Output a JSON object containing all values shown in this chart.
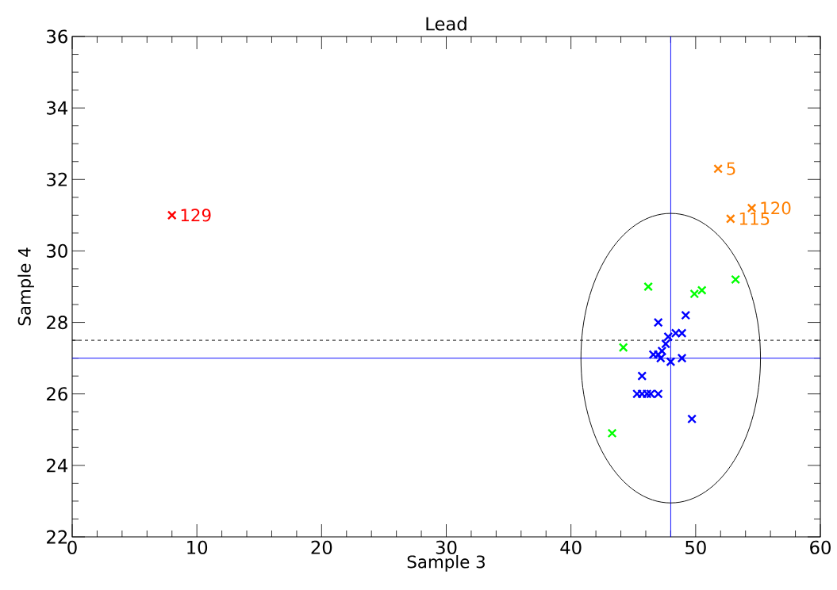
{
  "chart_data": {
    "type": "scatter",
    "title": "Lead",
    "xlabel": "Sample 3",
    "ylabel": "Sample 4",
    "xlim": [
      0,
      60
    ],
    "ylim": [
      22,
      36
    ],
    "xticks": [
      0,
      10,
      20,
      30,
      40,
      50,
      60
    ],
    "yticks": [
      22,
      24,
      26,
      28,
      30,
      32,
      34,
      36
    ],
    "marker": "cross",
    "grid": false,
    "series": [
      {
        "color": "#ff0000",
        "x": [
          8.0
        ],
        "values": [
          31.0
        ]
      },
      {
        "color": "#ff7f00",
        "x": [
          51.8,
          54.5,
          52.8
        ],
        "values": [
          32.3,
          31.2,
          30.9
        ]
      },
      {
        "color": "#00ff00",
        "x": [
          44.2,
          46.2,
          49.9,
          50.5,
          53.2,
          43.3
        ],
        "values": [
          27.3,
          29.0,
          28.8,
          28.9,
          29.2,
          24.9
        ]
      },
      {
        "color": "#0000ff",
        "x": [
          47.0,
          49.2,
          48.4,
          48.9,
          47.8,
          47.6,
          47.3,
          47.0,
          46.6,
          47.2,
          48.0,
          48.9,
          45.7,
          45.3,
          45.7,
          46.1,
          46.4,
          47.0,
          49.7
        ],
        "values": [
          28.0,
          28.2,
          27.7,
          27.7,
          27.6,
          27.4,
          27.2,
          27.1,
          27.1,
          27.0,
          26.9,
          27.0,
          26.5,
          26.0,
          26.0,
          26.0,
          26.0,
          26.0,
          25.3
        ]
      }
    ],
    "ref_lines": [
      {
        "axis": "x",
        "value": 48,
        "color": "#0000ff",
        "line_style": "solid"
      },
      {
        "axis": "y",
        "value": 27,
        "color": "#0000ff",
        "line_style": "solid"
      },
      {
        "axis": "y",
        "value": 27.5,
        "color": "#000000",
        "line_style": "dashed"
      }
    ],
    "annotations": [
      {
        "text": "129",
        "x": 8.0,
        "y": 31.0
      },
      {
        "text": "5",
        "x": 51.8,
        "y": 32.3
      },
      {
        "text": "120",
        "x": 54.5,
        "y": 31.2
      },
      {
        "text": "115",
        "x": 52.8,
        "y": 30.9
      }
    ]
  }
}
